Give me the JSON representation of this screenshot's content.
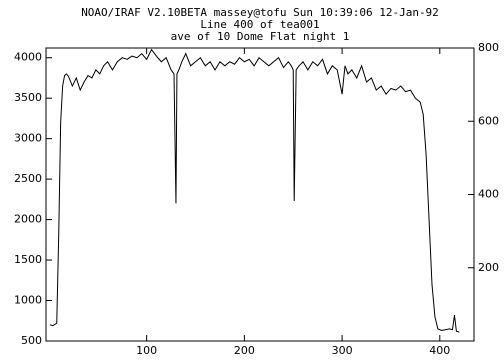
{
  "chart_data": {
    "type": "line",
    "title": [
      "NOAO/IRAF V2.10BETA massey@tofu Sun 10:39:06 12-Jan-92",
      "Line 400 of tea001",
      "ave of 10 Dome Flat night 1"
    ],
    "x": [
      1,
      4,
      8,
      10,
      12,
      14,
      16,
      18,
      20,
      24,
      28,
      32,
      36,
      40,
      44,
      48,
      52,
      56,
      60,
      65,
      70,
      75,
      80,
      85,
      90,
      95,
      100,
      105,
      110,
      115,
      120,
      125,
      128,
      130,
      131,
      133,
      136,
      140,
      145,
      150,
      155,
      160,
      165,
      170,
      175,
      180,
      185,
      190,
      195,
      200,
      205,
      210,
      215,
      220,
      225,
      230,
      235,
      240,
      245,
      248,
      250,
      251,
      253,
      256,
      260,
      265,
      270,
      275,
      280,
      285,
      290,
      295,
      300,
      303,
      306,
      310,
      315,
      320,
      325,
      330,
      335,
      340,
      345,
      350,
      355,
      360,
      365,
      370,
      375,
      380,
      383,
      386,
      389,
      392,
      395,
      398,
      402,
      406,
      410,
      413,
      415,
      417,
      420
    ],
    "series": [
      {
        "color": "#000000",
        "values": [
          700,
          690,
          720,
          1800,
          3200,
          3650,
          3780,
          3800,
          3770,
          3650,
          3750,
          3600,
          3700,
          3780,
          3750,
          3850,
          3800,
          3900,
          3950,
          3850,
          3950,
          4000,
          3980,
          4020,
          4000,
          4050,
          3980,
          4100,
          4020,
          3950,
          4000,
          3850,
          3800,
          2200,
          3800,
          3850,
          3950,
          4050,
          3900,
          3950,
          4000,
          3900,
          3950,
          3850,
          3950,
          3900,
          3950,
          3920,
          4000,
          3950,
          3980,
          3900,
          4000,
          3950,
          3900,
          3950,
          4000,
          3880,
          3950,
          3900,
          3850,
          2230,
          3850,
          3900,
          3950,
          3850,
          3950,
          3900,
          3980,
          3800,
          3900,
          3850,
          3550,
          3900,
          3800,
          3850,
          3750,
          3900,
          3700,
          3750,
          3600,
          3650,
          3550,
          3620,
          3600,
          3650,
          3580,
          3600,
          3500,
          3450,
          3300,
          2800,
          2000,
          1200,
          800,
          650,
          630,
          640,
          650,
          640,
          820,
          620,
          610
        ]
      }
    ],
    "xlim": [
      -3,
      435
    ],
    "xticks": [
      100,
      200,
      300,
      400
    ],
    "ylim": [
      500,
      4120
    ],
    "yticks": [
      500,
      1000,
      1500,
      2000,
      2500,
      3000,
      3500,
      4000
    ],
    "y2lim": [
      0,
      800
    ],
    "y2ticks": [
      200,
      400,
      600,
      800
    ]
  }
}
